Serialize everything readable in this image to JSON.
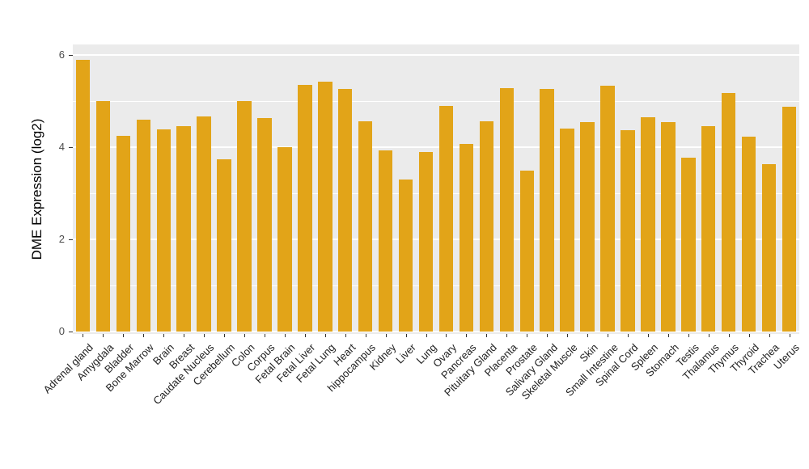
{
  "chart_data": {
    "type": "bar",
    "title": "",
    "ylabel": "DME Expression (log2)",
    "xlabel": "",
    "ylim": [
      0,
      6.2
    ],
    "yticks_major": [
      0,
      2,
      4,
      6
    ],
    "yticks_minor": [
      1,
      3,
      5
    ],
    "grid": "on",
    "legend": "none",
    "bar_color": "#E2A418",
    "panel_background": "#EBEBEB",
    "categories": [
      "Adrenal gland",
      "Amygdala",
      "Bladder",
      "Bone Marrow",
      "Brain",
      "Breast",
      "Caudate Nucleus",
      "Cerebellum",
      "Colon",
      "Corpus",
      "Fetal Brain",
      "Fetal Liver",
      "Fetal Lung",
      "Heart",
      "hippocampus",
      "Kidney",
      "Liver",
      "Lung",
      "Ovary",
      "Pancreas",
      "Pituitary Gland",
      "Placenta",
      "Prostate",
      "Salivary Gland",
      "Skeletal Muscle",
      "Skin",
      "Small Intestine",
      "Spinal Cord",
      "Spleen",
      "Stomach",
      "Testis",
      "Thalamus",
      "Thymus",
      "Thyroid",
      "Trachea",
      "Uterus"
    ],
    "values": [
      5.9,
      5.0,
      4.25,
      4.6,
      4.38,
      4.45,
      4.67,
      3.73,
      5.0,
      4.63,
      4.0,
      5.35,
      5.42,
      5.27,
      4.57,
      3.93,
      3.3,
      3.9,
      4.9,
      4.07,
      4.57,
      5.28,
      3.5,
      5.27,
      4.4,
      4.55,
      5.33,
      4.37,
      4.65,
      4.55,
      3.77,
      4.45,
      5.17,
      4.23,
      3.63,
      4.88
    ]
  }
}
